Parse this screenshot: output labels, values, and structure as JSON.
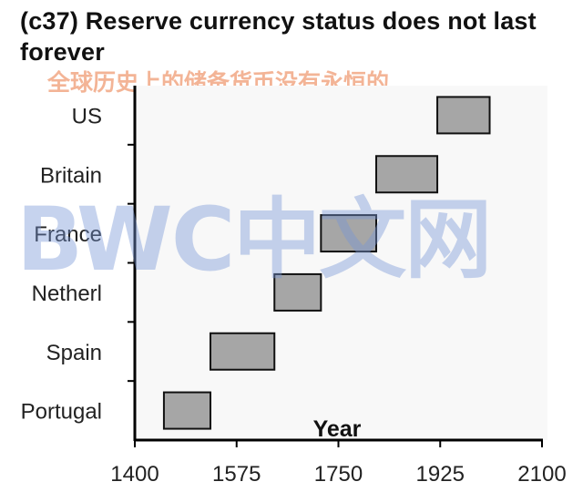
{
  "chart_data": {
    "type": "bar",
    "subtype": "floating-horizontal",
    "title": "(c37) Reserve currency status does not last forever",
    "subtitle": "全球历史上的储备货币没有永恒的",
    "xlabel": "Year",
    "ylabel": "",
    "xlim": [
      1400,
      2100
    ],
    "xticks": [
      "1400",
      "1575",
      "1750",
      "1925",
      "2100"
    ],
    "categories": [
      "Portugal",
      "Spain",
      "Netherl",
      "France",
      "Britain",
      "US"
    ],
    "series": [
      {
        "start": [
          1450,
          1530,
          1640,
          1720,
          1815,
          1920
        ],
        "end": [
          1530,
          1640,
          1720,
          1815,
          1920,
          2010
        ]
      }
    ],
    "grid": false,
    "legend": "none",
    "colors": {
      "bar_fill": "#a6a6a6",
      "bar_stroke": "#111111",
      "plot_bg": "#f8f8f8"
    }
  },
  "watermark": "BWC中文网"
}
